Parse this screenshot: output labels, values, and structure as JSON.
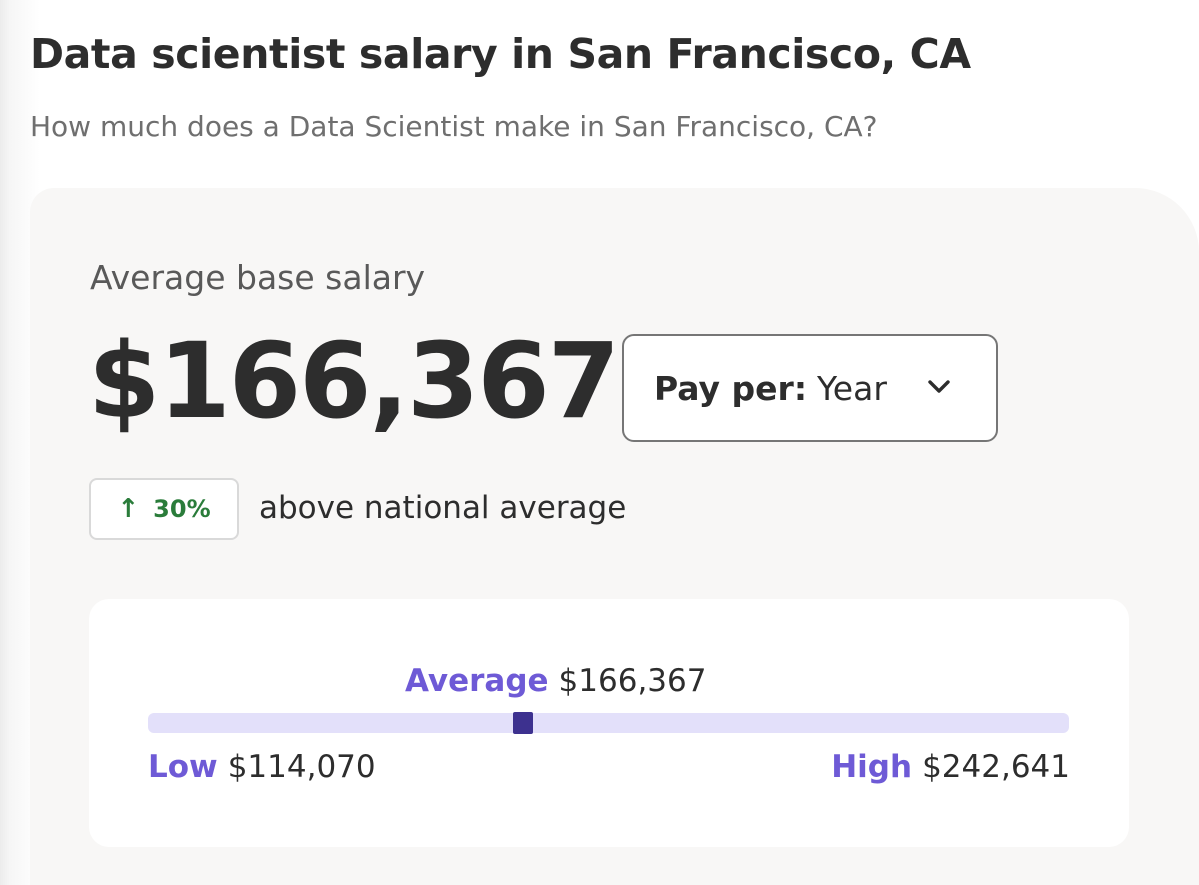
{
  "header": {
    "title": "Data scientist salary in San Francisco, CA",
    "subtitle": "How much does a Data Scientist make in San Francisco, CA?"
  },
  "salary": {
    "label": "Average base salary",
    "amount": "$166,367",
    "pay_period": {
      "label": "Pay per:",
      "value": "Year",
      "icon": "chevron-down-icon"
    },
    "trend": {
      "icon": "arrow-up-icon",
      "arrow": "↑",
      "percent": "30%",
      "text": "above national average",
      "color": "#2a7c3a"
    }
  },
  "range": {
    "average_label": "Average",
    "average_value": "$166,367",
    "low_label": "Low",
    "low_value": "$114,070",
    "high_label": "High",
    "high_value": "$242,641",
    "low_num": 114070,
    "high_num": 242641,
    "average_num": 166367,
    "accent_color": "#6e5ad6",
    "bar_color": "#e3e0fa",
    "marker_color": "#3d318f"
  }
}
